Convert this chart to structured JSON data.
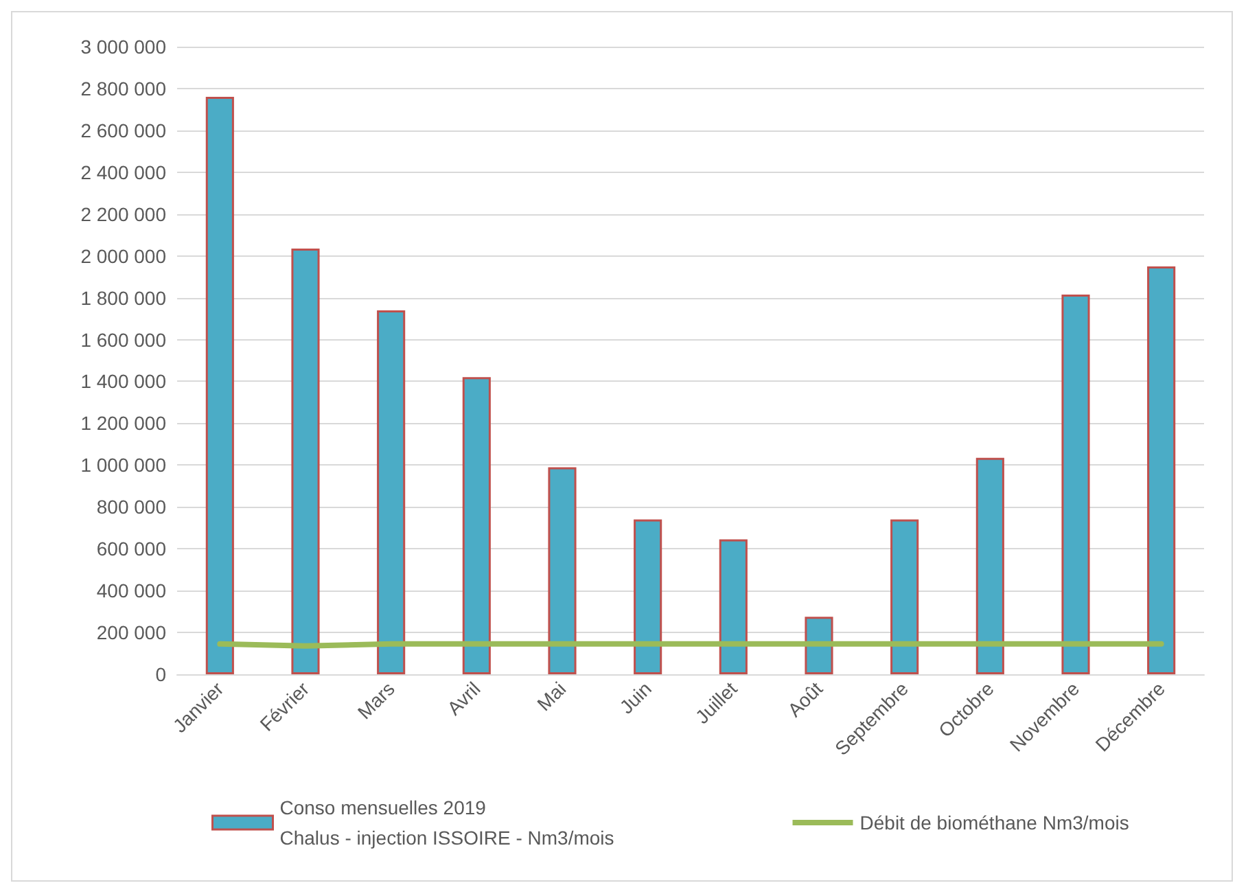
{
  "chart_data": {
    "type": "bar",
    "categories": [
      "Janvier",
      "Février",
      "Mars",
      "Avril",
      "Mai",
      "Juin",
      "Juillet",
      "Août",
      "Septembre",
      "Octobre",
      "Novembre",
      "Décembre"
    ],
    "series": [
      {
        "name": "Conso mensuelles 2019\nChalus - injection ISSOIRE - Nm3/mois",
        "color": "#4bacc6",
        "values": [
          2760000,
          2035000,
          1740000,
          1420000,
          990000,
          740000,
          645000,
          275000,
          740000,
          1035000,
          1815000,
          1950000
        ]
      },
      {
        "name": "Débit de biométhane Nm3/mois",
        "type": "line",
        "color": "#9bbb59",
        "values": [
          145000,
          135000,
          145000,
          145000,
          145000,
          145000,
          145000,
          145000,
          145000,
          145000,
          145000,
          145000
        ]
      }
    ],
    "ylim": [
      0,
      3000000
    ],
    "yticks": [
      0,
      200000,
      400000,
      600000,
      800000,
      1000000,
      1200000,
      1400000,
      1600000,
      1800000,
      2000000,
      2200000,
      2400000,
      2600000,
      2800000,
      3000000
    ],
    "grid": "y",
    "legend": "bottom",
    "marker": "none"
  }
}
